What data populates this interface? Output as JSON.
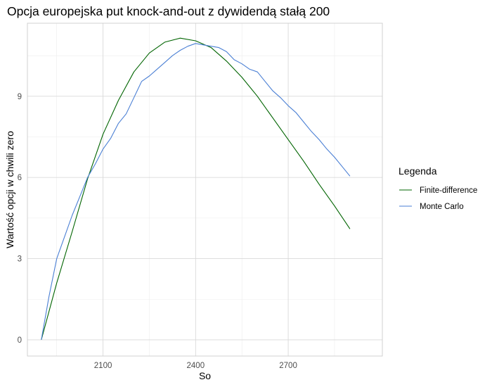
{
  "chart_data": {
    "type": "line",
    "title": "Opcja europejska put knock-and-out z dywidendą stałą 200",
    "xlabel": "So",
    "ylabel": "Wartość opcji w chwili zero",
    "xlim": [
      1855,
      3005
    ],
    "ylim": [
      -0.6,
      11.7
    ],
    "x_ticks": [
      2100,
      2400,
      2700
    ],
    "y_ticks": [
      0,
      3,
      6,
      9
    ],
    "x_tick_labels": [
      "2100",
      "2400",
      "2700"
    ],
    "y_tick_labels": [
      "0",
      "3",
      "6",
      "9"
    ],
    "grid": true,
    "legend": {
      "title": "Legenda",
      "placement": "right"
    },
    "series": [
      {
        "name": "Finite-difference",
        "color": "#006400",
        "x": [
          1900,
          1950,
          2000,
          2050,
          2100,
          2150,
          2200,
          2250,
          2300,
          2350,
          2400,
          2450,
          2500,
          2550,
          2600,
          2650,
          2700,
          2750,
          2800,
          2850,
          2900
        ],
        "y": [
          0.0,
          2.1,
          4.0,
          5.95,
          7.6,
          8.85,
          9.9,
          10.6,
          11.0,
          11.15,
          11.05,
          10.8,
          10.3,
          9.7,
          9.0,
          8.2,
          7.4,
          6.6,
          5.75,
          4.95,
          4.1
        ]
      },
      {
        "name": "Monte Carlo",
        "color": "#4a7fd4",
        "x": [
          1900,
          1925,
          1950,
          1975,
          2000,
          2025,
          2050,
          2075,
          2100,
          2125,
          2150,
          2175,
          2200,
          2225,
          2250,
          2275,
          2300,
          2325,
          2350,
          2375,
          2400,
          2425,
          2450,
          2475,
          2500,
          2525,
          2550,
          2575,
          2600,
          2625,
          2650,
          2675,
          2700,
          2725,
          2750,
          2775,
          2800,
          2825,
          2850,
          2875,
          2900
        ],
        "y": [
          0.0,
          1.6,
          3.0,
          3.8,
          4.6,
          5.3,
          6.0,
          6.5,
          7.05,
          7.45,
          8.0,
          8.35,
          8.95,
          9.55,
          9.75,
          10.0,
          10.25,
          10.5,
          10.7,
          10.85,
          10.95,
          10.9,
          10.85,
          10.8,
          10.65,
          10.35,
          10.2,
          10.0,
          9.9,
          9.55,
          9.2,
          8.95,
          8.65,
          8.4,
          8.05,
          7.7,
          7.4,
          7.05,
          6.75,
          6.4,
          6.05
        ]
      }
    ]
  }
}
